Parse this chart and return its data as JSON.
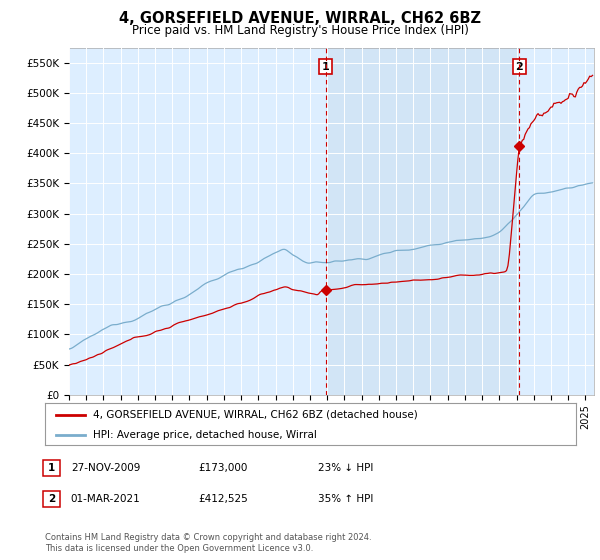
{
  "title": "4, GORSEFIELD AVENUE, WIRRAL, CH62 6BZ",
  "subtitle": "Price paid vs. HM Land Registry's House Price Index (HPI)",
  "ylabel_ticks": [
    "£0",
    "£50K",
    "£100K",
    "£150K",
    "£200K",
    "£250K",
    "£300K",
    "£350K",
    "£400K",
    "£450K",
    "£500K",
    "£550K"
  ],
  "ytick_values": [
    0,
    50000,
    100000,
    150000,
    200000,
    250000,
    300000,
    350000,
    400000,
    450000,
    500000,
    550000
  ],
  "ylim": [
    0,
    575000
  ],
  "xlim_start": 1995.0,
  "xlim_end": 2025.5,
  "xtick_years": [
    1995,
    1996,
    1997,
    1998,
    1999,
    2000,
    2001,
    2002,
    2003,
    2004,
    2005,
    2006,
    2007,
    2008,
    2009,
    2010,
    2011,
    2012,
    2013,
    2014,
    2015,
    2016,
    2017,
    2018,
    2019,
    2020,
    2021,
    2022,
    2023,
    2024,
    2025
  ],
  "marker1_x": 2009.92,
  "marker1_y": 173000,
  "marker2_x": 2021.17,
  "marker2_y": 412525,
  "marker1_label": "1",
  "marker2_label": "2",
  "red_line_color": "#cc0000",
  "blue_line_color": "#7aadcc",
  "plot_bg_color": "#ddeeff",
  "highlight_bg_color": "#cce0f0",
  "legend_label_red": "4, GORSEFIELD AVENUE, WIRRAL, CH62 6BZ (detached house)",
  "legend_label_blue": "HPI: Average price, detached house, Wirral",
  "table_row1": [
    "1",
    "27-NOV-2009",
    "£173,000",
    "23% ↓ HPI"
  ],
  "table_row2": [
    "2",
    "01-MAR-2021",
    "£412,525",
    "35% ↑ HPI"
  ],
  "footnote": "Contains HM Land Registry data © Crown copyright and database right 2024.\nThis data is licensed under the Open Government Licence v3.0.",
  "vline_color": "#cc0000",
  "marker_box_color": "#cc0000"
}
